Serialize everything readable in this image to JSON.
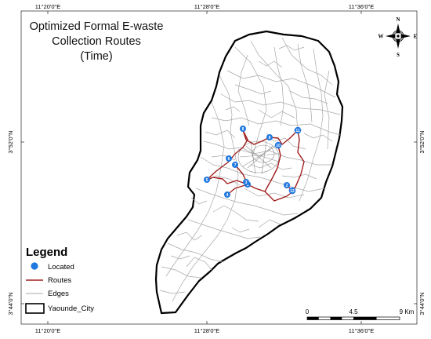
{
  "title": {
    "line1": "Optimized Formal E-waste",
    "line2": "Collection Routes",
    "line3": "(Time)"
  },
  "grid": {
    "lon_top": [
      "11°20'0\"E",
      "11°28'0\"E",
      "11°36'0\"E"
    ],
    "lon_bottom": [
      "11°20'0\"E",
      "11°28'0\"E",
      "11°36'0\"E"
    ],
    "lat_left": [
      "3°52'0\"N",
      "3°44'0\"N"
    ],
    "lat_right": [
      "3°52'0\"N",
      "3°44'0\"N"
    ]
  },
  "north_arrow": {
    "n": "N",
    "s": "S",
    "e": "E",
    "w": "W"
  },
  "legend": {
    "title": "Legend",
    "items": [
      {
        "label": "Located",
        "symbol": "blue-point"
      },
      {
        "label": "Routes",
        "symbol": "red-line"
      },
      {
        "label": "Edges",
        "symbol": "gray-line"
      },
      {
        "label": "Yaounde_City",
        "symbol": "boundary-box"
      }
    ]
  },
  "scale_bar": {
    "ticks": [
      "0",
      "4.5",
      "9 Km"
    ]
  },
  "points": [
    {
      "id": "1",
      "label": "1"
    },
    {
      "id": "2",
      "label": "2"
    },
    {
      "id": "3",
      "label": "3"
    },
    {
      "id": "4",
      "label": "4"
    },
    {
      "id": "5",
      "label": "5"
    },
    {
      "id": "6",
      "label": "6"
    },
    {
      "id": "7",
      "label": "7"
    },
    {
      "id": "8",
      "label": "8"
    },
    {
      "id": "9",
      "label": "9"
    },
    {
      "id": "10",
      "label": "10"
    },
    {
      "id": "11",
      "label": "11"
    },
    {
      "id": "12",
      "label": "12"
    }
  ],
  "colors": {
    "route": "#a01e1e",
    "edges": "#9a9a9a",
    "point": "#1f78e0",
    "boundary": "#000000"
  }
}
